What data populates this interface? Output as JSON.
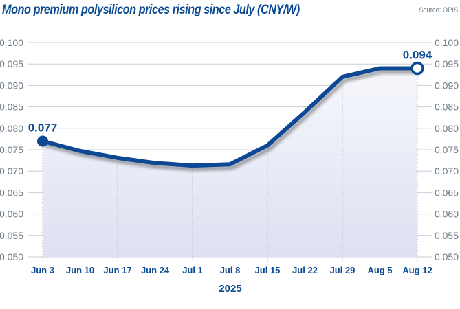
{
  "chart_data": {
    "type": "line",
    "title": "Mono premium polysilicon prices rising since July (CNY/W)",
    "source": "Source: OPIS",
    "xlabel": "2025",
    "ylabel": "",
    "categories": [
      "Jun 3",
      "Jun 10",
      "Jun 17",
      "Jun 24",
      "Jul 1",
      "Jul 8",
      "Jul 15",
      "Jul 22",
      "Jul 29",
      "Aug 5",
      "Aug 12"
    ],
    "series": [
      {
        "name": "Mono premium polysilicon price",
        "values": [
          0.077,
          0.0747,
          0.0731,
          0.0719,
          0.0713,
          0.0716,
          0.076,
          0.0838,
          0.092,
          0.094,
          0.094
        ]
      }
    ],
    "ylim": [
      0.05,
      0.1
    ],
    "yticks": [
      "0.050",
      "0.055",
      "0.060",
      "0.065",
      "0.070",
      "0.075",
      "0.080",
      "0.085",
      "0.090",
      "0.095",
      "0.100"
    ],
    "y_axes": "left and right",
    "grid": true,
    "annotations": [
      {
        "category": "Jun 3",
        "text": "0.077"
      },
      {
        "category": "Aug 12",
        "text": "0.094"
      }
    ],
    "colors": {
      "line": "#0b4a92",
      "fill_top": "#f4f5fb",
      "fill_bottom": "#dde1f1",
      "grid": "#c9ced6",
      "axis_text": "#6e7b86"
    }
  }
}
